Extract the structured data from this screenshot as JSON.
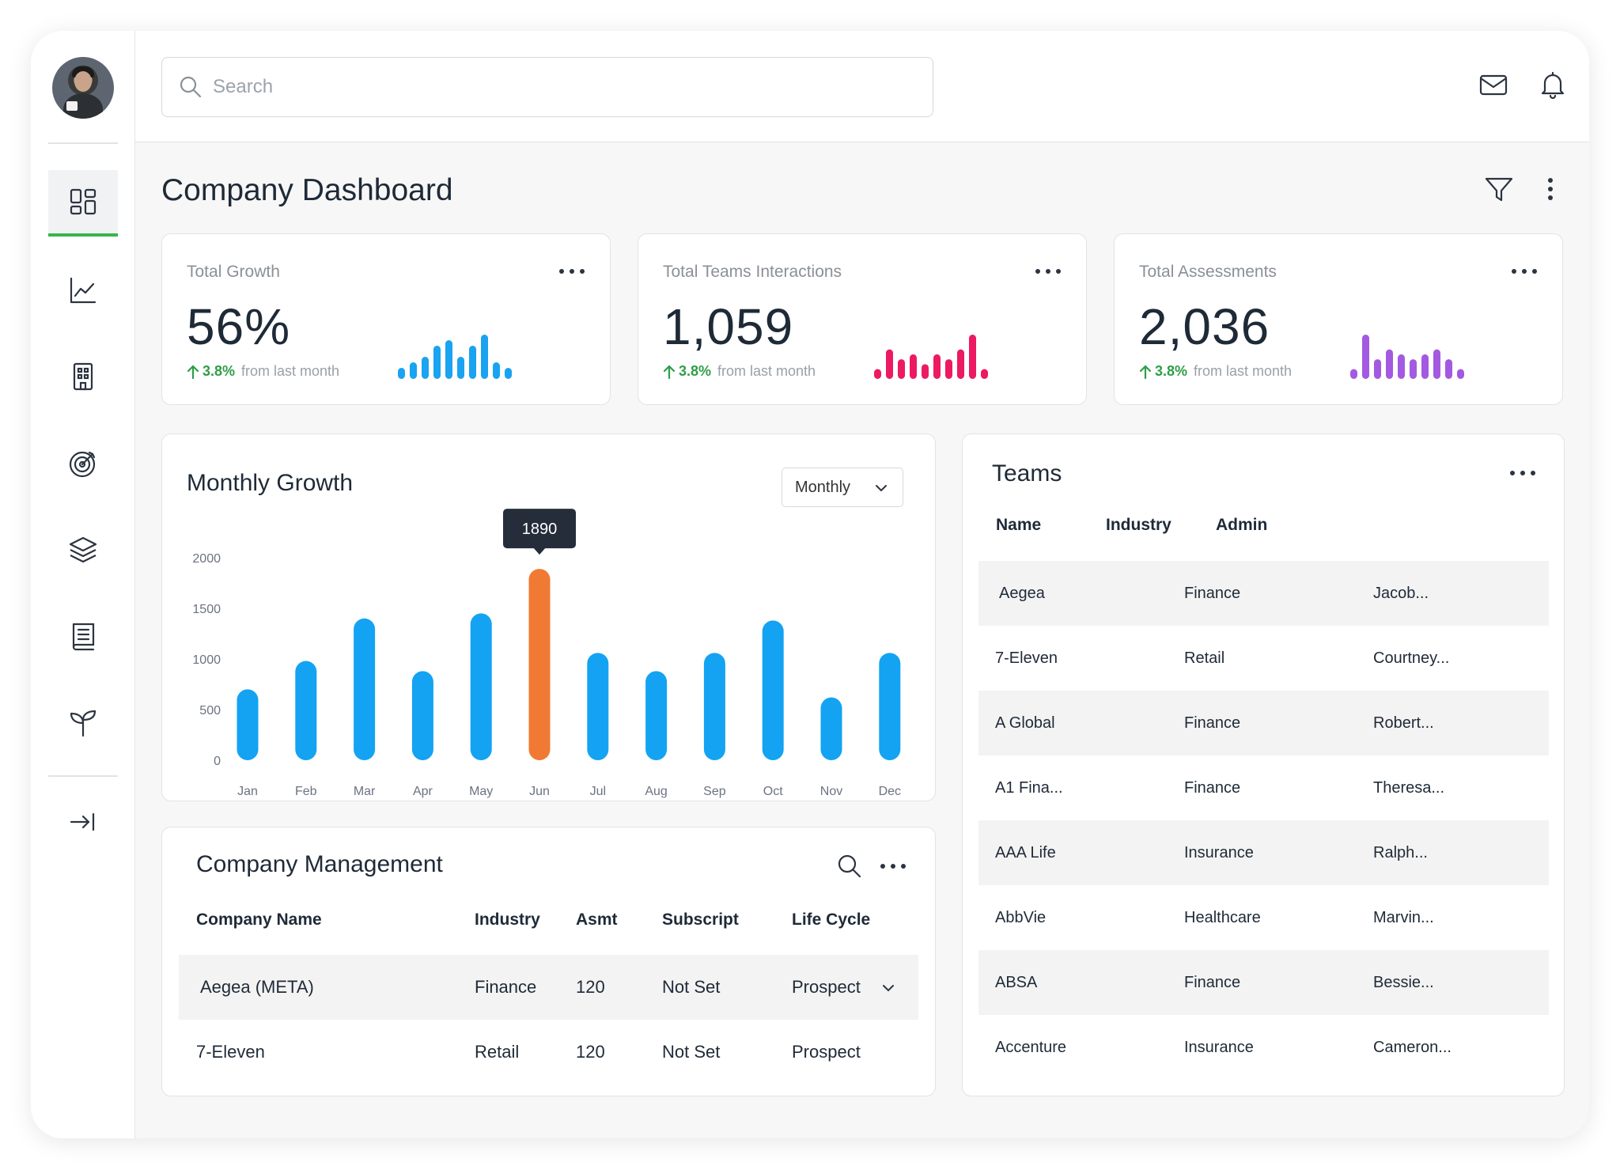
{
  "search": {
    "placeholder": "Search"
  },
  "page": {
    "title": "Company Dashboard"
  },
  "sidebar": {
    "items": [
      {
        "icon": "dashboard-icon",
        "active": true
      },
      {
        "icon": "line-chart-icon",
        "active": false
      },
      {
        "icon": "building-icon",
        "active": false
      },
      {
        "icon": "target-icon",
        "active": false
      },
      {
        "icon": "layers-icon",
        "active": false
      },
      {
        "icon": "book-icon",
        "active": false
      },
      {
        "icon": "sprout-icon",
        "active": false
      }
    ],
    "collapse_icon": "collapse-arrow-icon"
  },
  "stats": [
    {
      "title": "Total Growth",
      "value": "56%",
      "change": "3.8%",
      "change_text": "from last month",
      "color": "#1aa3f0",
      "spark": [
        2,
        3,
        4,
        6,
        7,
        4,
        6,
        8,
        3,
        2
      ]
    },
    {
      "title": "Total Teams Interactions",
      "value": "1,059",
      "change": "3.8%",
      "change_text": "from last month",
      "color": "#ec1a63",
      "spark": [
        2,
        6,
        4,
        5,
        3,
        5,
        4,
        6,
        9,
        2
      ]
    },
    {
      "title": "Total Assessments",
      "value": "2,036",
      "change": "3.8%",
      "change_text": "from last month",
      "color": "#a35ae0",
      "spark": [
        2,
        9,
        4,
        6,
        5,
        4,
        5,
        6,
        4,
        2
      ]
    }
  ],
  "monthly_growth": {
    "title": "Monthly Growth",
    "period_select": "Monthly",
    "tooltip": "1890"
  },
  "chart_data": {
    "type": "bar",
    "title": "Monthly Growth",
    "categories": [
      "Jan",
      "Feb",
      "Mar",
      "Apr",
      "May",
      "Jun",
      "Jul",
      "Aug",
      "Sep",
      "Oct",
      "Nov",
      "Dec"
    ],
    "values": [
      700,
      980,
      1400,
      880,
      1450,
      1890,
      1060,
      880,
      1060,
      1380,
      620,
      1060
    ],
    "yticks": [
      "2000",
      "1500",
      "1000",
      "500",
      "0"
    ],
    "ylim": [
      0,
      2000
    ],
    "highlight_index": 5,
    "bar_color": "#13a3f2",
    "highlight_color": "#f07a34"
  },
  "company_management": {
    "title": "Company Management",
    "columns": [
      "Company Name",
      "Industry",
      "Asmt",
      "Subscript",
      "Life Cycle"
    ],
    "rows": [
      [
        "Aegea (META)",
        "Finance",
        "120",
        "Not Set",
        "Prospect"
      ],
      [
        "7-Eleven",
        "Retail",
        "120",
        "Not Set",
        "Prospect"
      ]
    ]
  },
  "teams": {
    "title": "Teams",
    "columns": [
      "Name",
      "Industry",
      "Admin"
    ],
    "rows": [
      [
        "Aegea",
        "Finance",
        "Jacob..."
      ],
      [
        "7-Eleven",
        "Retail",
        "Courtney..."
      ],
      [
        "A Global",
        "Finance",
        "Robert..."
      ],
      [
        "A1 Fina...",
        "Finance",
        "Theresa..."
      ],
      [
        "AAA Life",
        "Insurance",
        "Ralph..."
      ],
      [
        "AbbVie",
        "Healthcare",
        "Marvin..."
      ],
      [
        "ABSA",
        "Finance",
        "Bessie..."
      ],
      [
        "Accenture",
        "Insurance",
        "Cameron..."
      ]
    ]
  }
}
